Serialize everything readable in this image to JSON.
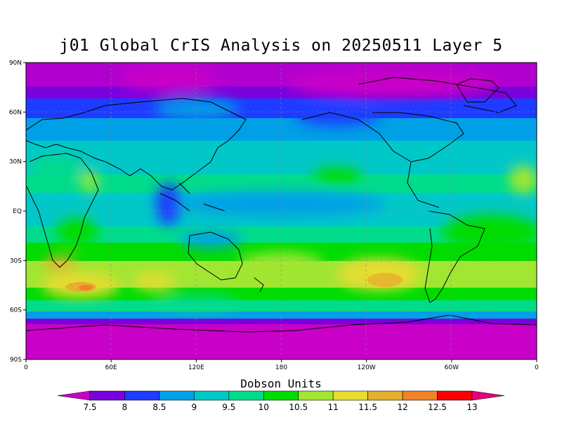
{
  "title": "j01 Global CrIS Analysis on 20250511 Layer 5",
  "y_ticks": [
    "90N",
    "60N",
    "30N",
    "EQ",
    "30S",
    "60S",
    "90S"
  ],
  "x_ticks": [
    "0",
    "60E",
    "120E",
    "180",
    "120W",
    "60W",
    "0"
  ],
  "colorbar": {
    "title": "Dobson Units",
    "labels": [
      "7.5",
      "8",
      "8.5",
      "9",
      "9.5",
      "10",
      "10.5",
      "11",
      "11.5",
      "12",
      "12.5",
      "13"
    ],
    "colors": [
      "#c800c8",
      "#7b00dd",
      "#1e3cff",
      "#00a0e6",
      "#00c8c8",
      "#00dc8c",
      "#00dc00",
      "#a0e632",
      "#e6dc32",
      "#e6af2d",
      "#f08228",
      "#fa0000",
      "#e6007a"
    ]
  }
}
